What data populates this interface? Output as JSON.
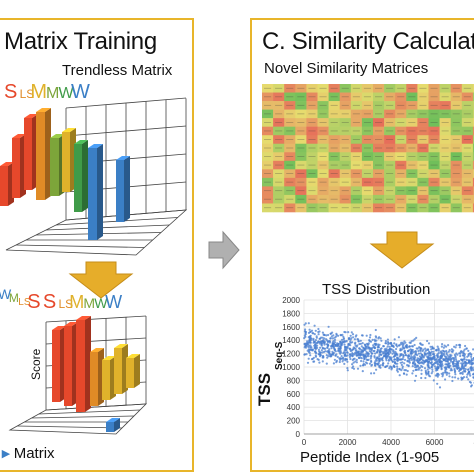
{
  "left_panel": {
    "title": "Matrix Training",
    "subtitle": "Trendless Matrix",
    "footer": "Matrix",
    "axis_score": "Score",
    "letters_top": [
      {
        "text": "S",
        "color": "#e6482b"
      },
      {
        "text": "LS",
        "color": "#e08b26"
      },
      {
        "text": "M",
        "color": "#e0b22b"
      },
      {
        "text": "M",
        "color": "#7da53a"
      },
      {
        "text": "W",
        "color": "#3f9b49"
      },
      {
        "text": "W",
        "color": "#3b7fc6"
      }
    ],
    "letters_bottom": [
      {
        "text": "W",
        "color": "#3b7fc6"
      },
      {
        "text": "M",
        "color": "#7da53a"
      },
      {
        "text": "LS",
        "color": "#e08b26"
      },
      {
        "text": "S",
        "color": "#e6482b"
      },
      {
        "text": "S",
        "color": "#e6482b"
      },
      {
        "text": "LS",
        "color": "#e08b26"
      },
      {
        "text": "M",
        "color": "#e0b22b"
      },
      {
        "text": "M",
        "color": "#7da53a"
      },
      {
        "text": "W",
        "color": "#3f9b49"
      },
      {
        "text": "W",
        "color": "#3b7fc6"
      }
    ]
  },
  "right_panel": {
    "title": "C. Similarity Calculat",
    "subtitle": "Novel Similarity Matrices",
    "chart_title": "TSS Distribution",
    "y_label": "TSS",
    "y_label_sub": "Seq-S",
    "x_label": "Peptide Index (1-905",
    "y_ticks": [
      "2000",
      "1800",
      "1600",
      "1400",
      "1200",
      "1000",
      "800",
      "600",
      "400",
      "200",
      "0"
    ],
    "x_ticks": [
      "0",
      "2000",
      "4000",
      "6000",
      "80"
    ]
  },
  "colors": {
    "panel_border": "#e8b52a",
    "arrow_fill": "#e6ad2a",
    "connector_arrow": "#9a9a9a",
    "scatter_point": "#4a7fd0"
  },
  "chart_data": {
    "type": "scatter",
    "title": "TSS Distribution",
    "xlabel": "Peptide Index (1-905",
    "ylabel": "TSS Seq-S",
    "xlim": [
      0,
      8000
    ],
    "ylim": [
      0,
      2000
    ],
    "trend": [
      {
        "x": 0,
        "y": 1350
      },
      {
        "x": 8000,
        "y": 1000
      }
    ],
    "spread": 180,
    "n_points": 1400
  }
}
